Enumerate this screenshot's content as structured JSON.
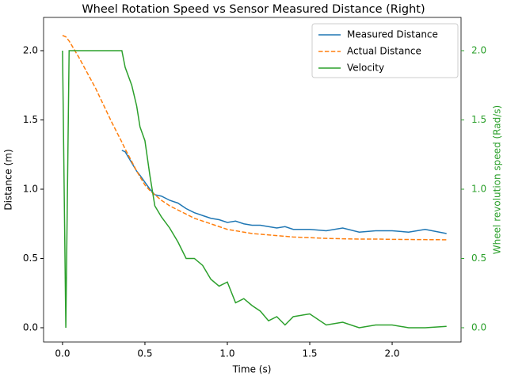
{
  "chart_data": {
    "type": "line",
    "title": "Wheel Rotation Speed vs Sensor Measured Distance (Right)",
    "xlabel": "Time (s)",
    "ylabel": "Distance (m)",
    "y2label": "Wheel revolution speed (Rad/s)",
    "y2color": "#2ca02c",
    "x": [
      0,
      0.02,
      0.04,
      0.1,
      0.2,
      0.3,
      0.36,
      0.38,
      0.42,
      0.45,
      0.47,
      0.5,
      0.53,
      0.56,
      0.6,
      0.65,
      0.7,
      0.75,
      0.8,
      0.85,
      0.9,
      0.95,
      1.0,
      1.05,
      1.1,
      1.15,
      1.2,
      1.25,
      1.3,
      1.35,
      1.4,
      1.5,
      1.6,
      1.7,
      1.8,
      1.9,
      2.0,
      2.1,
      2.2,
      2.33
    ],
    "series": [
      {
        "name": "Measured Distance",
        "color": "#1f77b4",
        "linestyle": "solid",
        "values": [
          null,
          null,
          null,
          null,
          null,
          null,
          1.28,
          1.27,
          1.19,
          1.13,
          1.1,
          1.05,
          1.0,
          0.96,
          0.95,
          0.92,
          0.9,
          0.86,
          0.83,
          0.81,
          0.79,
          0.78,
          0.76,
          0.77,
          0.75,
          0.74,
          0.74,
          0.73,
          0.72,
          0.73,
          0.71,
          0.71,
          0.7,
          0.72,
          0.69,
          0.7,
          0.7,
          0.69,
          0.71,
          0.68
        ]
      },
      {
        "name": "Actual Distance",
        "color": "#ff7f0e",
        "linestyle": "dashed",
        "values": [
          2.11,
          2.1,
          2.07,
          1.95,
          1.73,
          1.48,
          1.34,
          1.29,
          1.2,
          1.13,
          1.09,
          1.03,
          0.99,
          0.96,
          0.92,
          0.88,
          0.85,
          0.82,
          0.79,
          0.77,
          0.75,
          0.73,
          0.71,
          0.7,
          0.69,
          0.68,
          0.675,
          0.67,
          0.665,
          0.66,
          0.655,
          0.65,
          0.645,
          0.642,
          0.64,
          0.64,
          0.638,
          0.637,
          0.636,
          0.635
        ]
      },
      {
        "name": "Velocity",
        "color": "#2ca02c",
        "linestyle": "solid",
        "axis": "y2",
        "values": [
          2.0,
          0,
          2.0,
          2.0,
          2.0,
          2.0,
          2.0,
          1.88,
          1.75,
          1.6,
          1.45,
          1.35,
          1.1,
          0.88,
          0.8,
          0.72,
          0.62,
          0.5,
          0.5,
          0.45,
          0.35,
          0.3,
          0.33,
          0.18,
          0.21,
          0.16,
          0.12,
          0.05,
          0.08,
          0.02,
          0.08,
          0.1,
          0.02,
          0.04,
          0,
          0.02,
          0.02,
          0,
          0,
          0.01
        ]
      }
    ],
    "xlim": [
      -0.115,
      2.418
    ],
    "xticks": [
      {
        "value": 0,
        "label": "0.0"
      },
      {
        "value": 0.5,
        "label": "0.5"
      },
      {
        "value": 1,
        "label": "1.0"
      },
      {
        "value": 1.5,
        "label": "1.5"
      },
      {
        "value": 2,
        "label": "2.0"
      }
    ],
    "ylim": [
      -0.103,
      2.24
    ],
    "yticks": [
      {
        "value": 0,
        "label": "0.0"
      },
      {
        "value": 0.5,
        "label": "0.5"
      },
      {
        "value": 1,
        "label": "1.0"
      },
      {
        "value": 1.5,
        "label": "1.5"
      },
      {
        "value": 2,
        "label": "2.0"
      }
    ],
    "y2lim": [
      -0.103,
      2.24
    ],
    "y2ticks": [
      {
        "value": 0,
        "label": "0.0"
      },
      {
        "value": 0.5,
        "label": "0.5"
      },
      {
        "value": 1,
        "label": "1.0"
      },
      {
        "value": 1.5,
        "label": "1.5"
      },
      {
        "value": 2,
        "label": "2.0"
      }
    ],
    "legend": "upper right",
    "grid": false
  }
}
